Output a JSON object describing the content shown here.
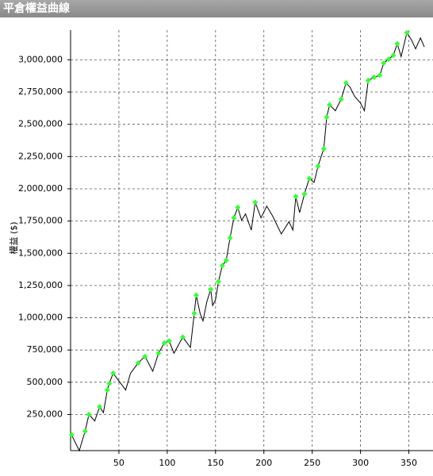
{
  "chart_data": {
    "type": "line",
    "title": "平倉權益曲線",
    "y_label": "權益 ($)",
    "x": [
      1,
      9,
      15,
      19,
      25,
      30,
      34,
      38,
      40,
      44,
      50,
      57,
      62,
      70,
      77,
      85,
      91,
      97,
      102,
      107,
      116,
      124,
      128,
      130,
      134,
      137,
      141,
      145,
      147,
      150,
      153,
      157,
      161,
      165,
      169,
      173,
      177,
      181,
      187,
      191,
      197,
      203,
      209,
      218,
      226,
      230,
      233,
      237,
      242,
      247,
      252,
      256,
      262,
      265,
      268,
      274,
      280,
      285,
      289,
      294,
      300,
      304,
      308,
      314,
      320,
      324,
      329,
      334,
      338,
      342,
      348,
      353,
      357,
      362,
      366
    ],
    "series": [
      {
        "color": "#000000",
        "marker_color": "#33ff33",
        "values": [
          92000,
          -30000,
          120000,
          250000,
          200000,
          310000,
          265000,
          440000,
          490000,
          570000,
          510000,
          440000,
          570000,
          650000,
          700000,
          585000,
          725000,
          805000,
          820000,
          725000,
          850000,
          770000,
          1035000,
          1175000,
          1035000,
          975000,
          1125000,
          1220000,
          1095000,
          1140000,
          1280000,
          1405000,
          1445000,
          1620000,
          1775000,
          1855000,
          1755000,
          1805000,
          1680000,
          1895000,
          1775000,
          1865000,
          1790000,
          1650000,
          1745000,
          1680000,
          1940000,
          1815000,
          1960000,
          2080000,
          2050000,
          2175000,
          2310000,
          2555000,
          2650000,
          2605000,
          2695000,
          2820000,
          2790000,
          2715000,
          2665000,
          2605000,
          2840000,
          2865000,
          2880000,
          2975000,
          3005000,
          3035000,
          3125000,
          3025000,
          3210000,
          3150000,
          3085000,
          3170000,
          3100000
        ]
      }
    ],
    "xlim": [
      0,
      375
    ],
    "xticks": [
      50,
      100,
      150,
      200,
      250,
      300,
      350
    ],
    "ylim": [
      -30000,
      3230000
    ],
    "yticks": [
      {
        "value": 250000,
        "label": "250,000"
      },
      {
        "value": 500000,
        "label": "500,000"
      },
      {
        "value": 750000,
        "label": "750,000"
      },
      {
        "value": 1000000,
        "label": "1,000,000"
      },
      {
        "value": 1250000,
        "label": "1,250,000"
      },
      {
        "value": 1500000,
        "label": "1,500,000"
      },
      {
        "value": 1750000,
        "label": "1,750,000"
      },
      {
        "value": 2000000,
        "label": "2,000,000"
      },
      {
        "value": 2250000,
        "label": "2,250,000"
      },
      {
        "value": 2500000,
        "label": "2,500,000"
      },
      {
        "value": 2750000,
        "label": "2,750,000"
      },
      {
        "value": 3000000,
        "label": "3,000,000"
      }
    ],
    "grid": true
  }
}
